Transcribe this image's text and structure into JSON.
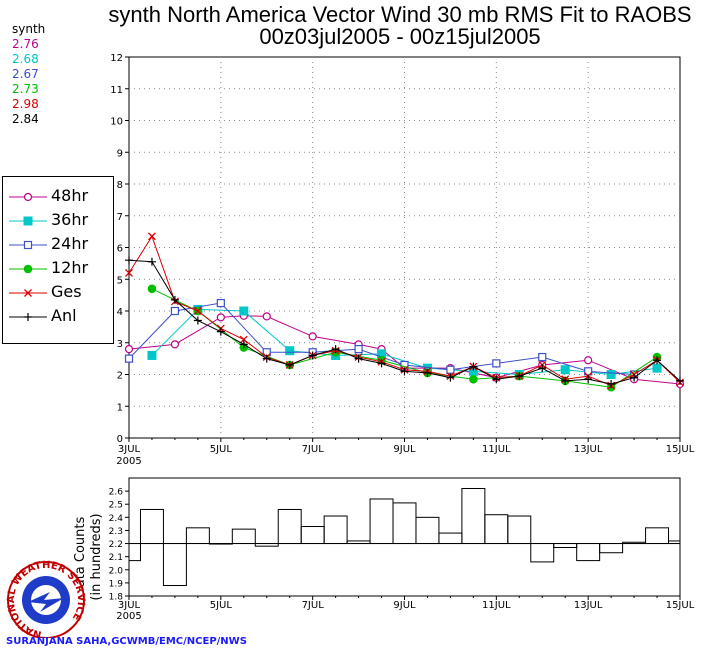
{
  "title_line1": "synth North America Vector Wind 30 mb RMS Fit to RAOBS",
  "title_line2": "00z03jul2005 - 00z15jul2005",
  "stats": {
    "header": "synth",
    "values": [
      {
        "text": "2.76",
        "color": "#c0008c"
      },
      {
        "text": "2.68",
        "color": "#00c8c8"
      },
      {
        "text": "2.67",
        "color": "#3c50c8"
      },
      {
        "text": "2.73",
        "color": "#00c000"
      },
      {
        "text": "2.98",
        "color": "#dc0000"
      },
      {
        "text": "2.84",
        "color": "#000000"
      }
    ]
  },
  "credit": "SURANJANA SAHA,GCWMB/EMC/NCEP/NWS",
  "logo_text": "NATIONAL WEATHER SERVICE",
  "chart_data": [
    {
      "type": "line",
      "title": "synth North America Vector Wind 30 mb RMS Fit to RAOBS",
      "x_ticks": [
        "3JUL",
        "5JUL",
        "7JUL",
        "9JUL",
        "11JUL",
        "13JUL",
        "15JUL"
      ],
      "x_year": "2005",
      "xlim": [
        0,
        24
      ],
      "ylim": [
        0,
        12
      ],
      "y_ticks": [
        0,
        1,
        2,
        3,
        4,
        5,
        6,
        7,
        8,
        9,
        10,
        11,
        12
      ],
      "grid": true,
      "legend_position": "left",
      "series": [
        {
          "name": "48hr",
          "color": "#c0008c",
          "marker": "open-circle",
          "x": [
            0,
            2,
            4,
            5,
            6,
            8,
            10,
            11,
            12,
            14,
            16,
            18,
            20,
            22,
            24
          ],
          "y": [
            2.8,
            2.95,
            3.8,
            3.85,
            3.83,
            3.2,
            2.95,
            2.8,
            2.2,
            2.2,
            1.9,
            2.3,
            2.45,
            1.85,
            1.7
          ]
        },
        {
          "name": "36hr",
          "color": "#00c8c8",
          "marker": "filled-square",
          "x": [
            1,
            3,
            5,
            7,
            9,
            11,
            13,
            15,
            17,
            19,
            21,
            23
          ],
          "y": [
            2.6,
            4.05,
            4.0,
            2.75,
            2.6,
            2.65,
            2.2,
            2.1,
            2.0,
            2.15,
            2.0,
            2.2
          ]
        },
        {
          "name": "24hr",
          "color": "#3c50c8",
          "marker": "open-square",
          "x": [
            0,
            2,
            4,
            6,
            8,
            10,
            12,
            14,
            16,
            18,
            20,
            22
          ],
          "y": [
            2.5,
            4.0,
            4.25,
            2.7,
            2.7,
            2.8,
            2.3,
            2.15,
            2.35,
            2.55,
            2.1,
            2.0
          ]
        },
        {
          "name": "12hr",
          "color": "#00c000",
          "marker": "filled-circle",
          "x": [
            1,
            3,
            5,
            7,
            9,
            11,
            13,
            15,
            17,
            19,
            21,
            23
          ],
          "y": [
            4.7,
            4.0,
            2.85,
            2.3,
            2.7,
            2.45,
            2.05,
            1.85,
            1.95,
            1.8,
            1.6,
            2.55
          ]
        },
        {
          "name": "Ges",
          "color": "#dc0000",
          "marker": "x",
          "x": [
            0,
            1,
            2,
            3,
            4,
            5,
            6,
            7,
            8,
            9,
            10,
            11,
            12,
            13,
            14,
            15,
            16,
            17,
            18,
            19,
            20,
            21,
            22,
            23,
            24
          ],
          "y": [
            5.2,
            6.35,
            4.3,
            4.0,
            3.45,
            3.1,
            2.55,
            2.3,
            2.6,
            2.75,
            2.55,
            2.4,
            2.15,
            2.1,
            1.95,
            2.25,
            1.9,
            1.95,
            2.3,
            1.85,
            1.95,
            1.65,
            2.0,
            2.45,
            1.75
          ]
        },
        {
          "name": "Anl",
          "color": "#000000",
          "marker": "plus",
          "x": [
            0,
            1,
            2,
            3,
            4,
            5,
            6,
            7,
            8,
            9,
            10,
            11,
            12,
            13,
            14,
            15,
            16,
            17,
            18,
            19,
            20,
            21,
            22,
            23,
            24
          ],
          "y": [
            5.6,
            5.55,
            4.35,
            3.7,
            3.35,
            2.95,
            2.5,
            2.3,
            2.6,
            2.8,
            2.5,
            2.35,
            2.1,
            2.05,
            1.9,
            2.25,
            1.85,
            1.95,
            2.2,
            1.8,
            1.85,
            1.7,
            1.9,
            2.45,
            1.8
          ]
        }
      ]
    },
    {
      "type": "bar",
      "ylabel_line1": "Data Counts",
      "ylabel_line2": "(in hundreds)",
      "x_ticks": [
        "3JUL",
        "5JUL",
        "7JUL",
        "9JUL",
        "11JUL",
        "13JUL",
        "15JUL"
      ],
      "x_year": "2005",
      "xlim": [
        0,
        24
      ],
      "ylim": [
        1.8,
        2.7
      ],
      "y_ticks": [
        1.8,
        1.9,
        2.0,
        2.1,
        2.2,
        2.3,
        2.4,
        2.5,
        2.6
      ],
      "baseline": 2.2,
      "x": [
        0,
        1,
        2,
        3,
        4,
        5,
        6,
        7,
        8,
        9,
        10,
        11,
        12,
        13,
        14,
        15,
        16,
        17,
        18,
        19,
        20,
        21,
        22,
        23,
        24
      ],
      "values": [
        2.07,
        2.46,
        1.88,
        2.32,
        2.2,
        2.31,
        2.18,
        2.46,
        2.33,
        2.41,
        2.22,
        2.54,
        2.51,
        2.4,
        2.28,
        2.62,
        2.42,
        2.41,
        2.06,
        2.17,
        2.07,
        2.13,
        2.21,
        2.32,
        2.22
      ]
    }
  ]
}
